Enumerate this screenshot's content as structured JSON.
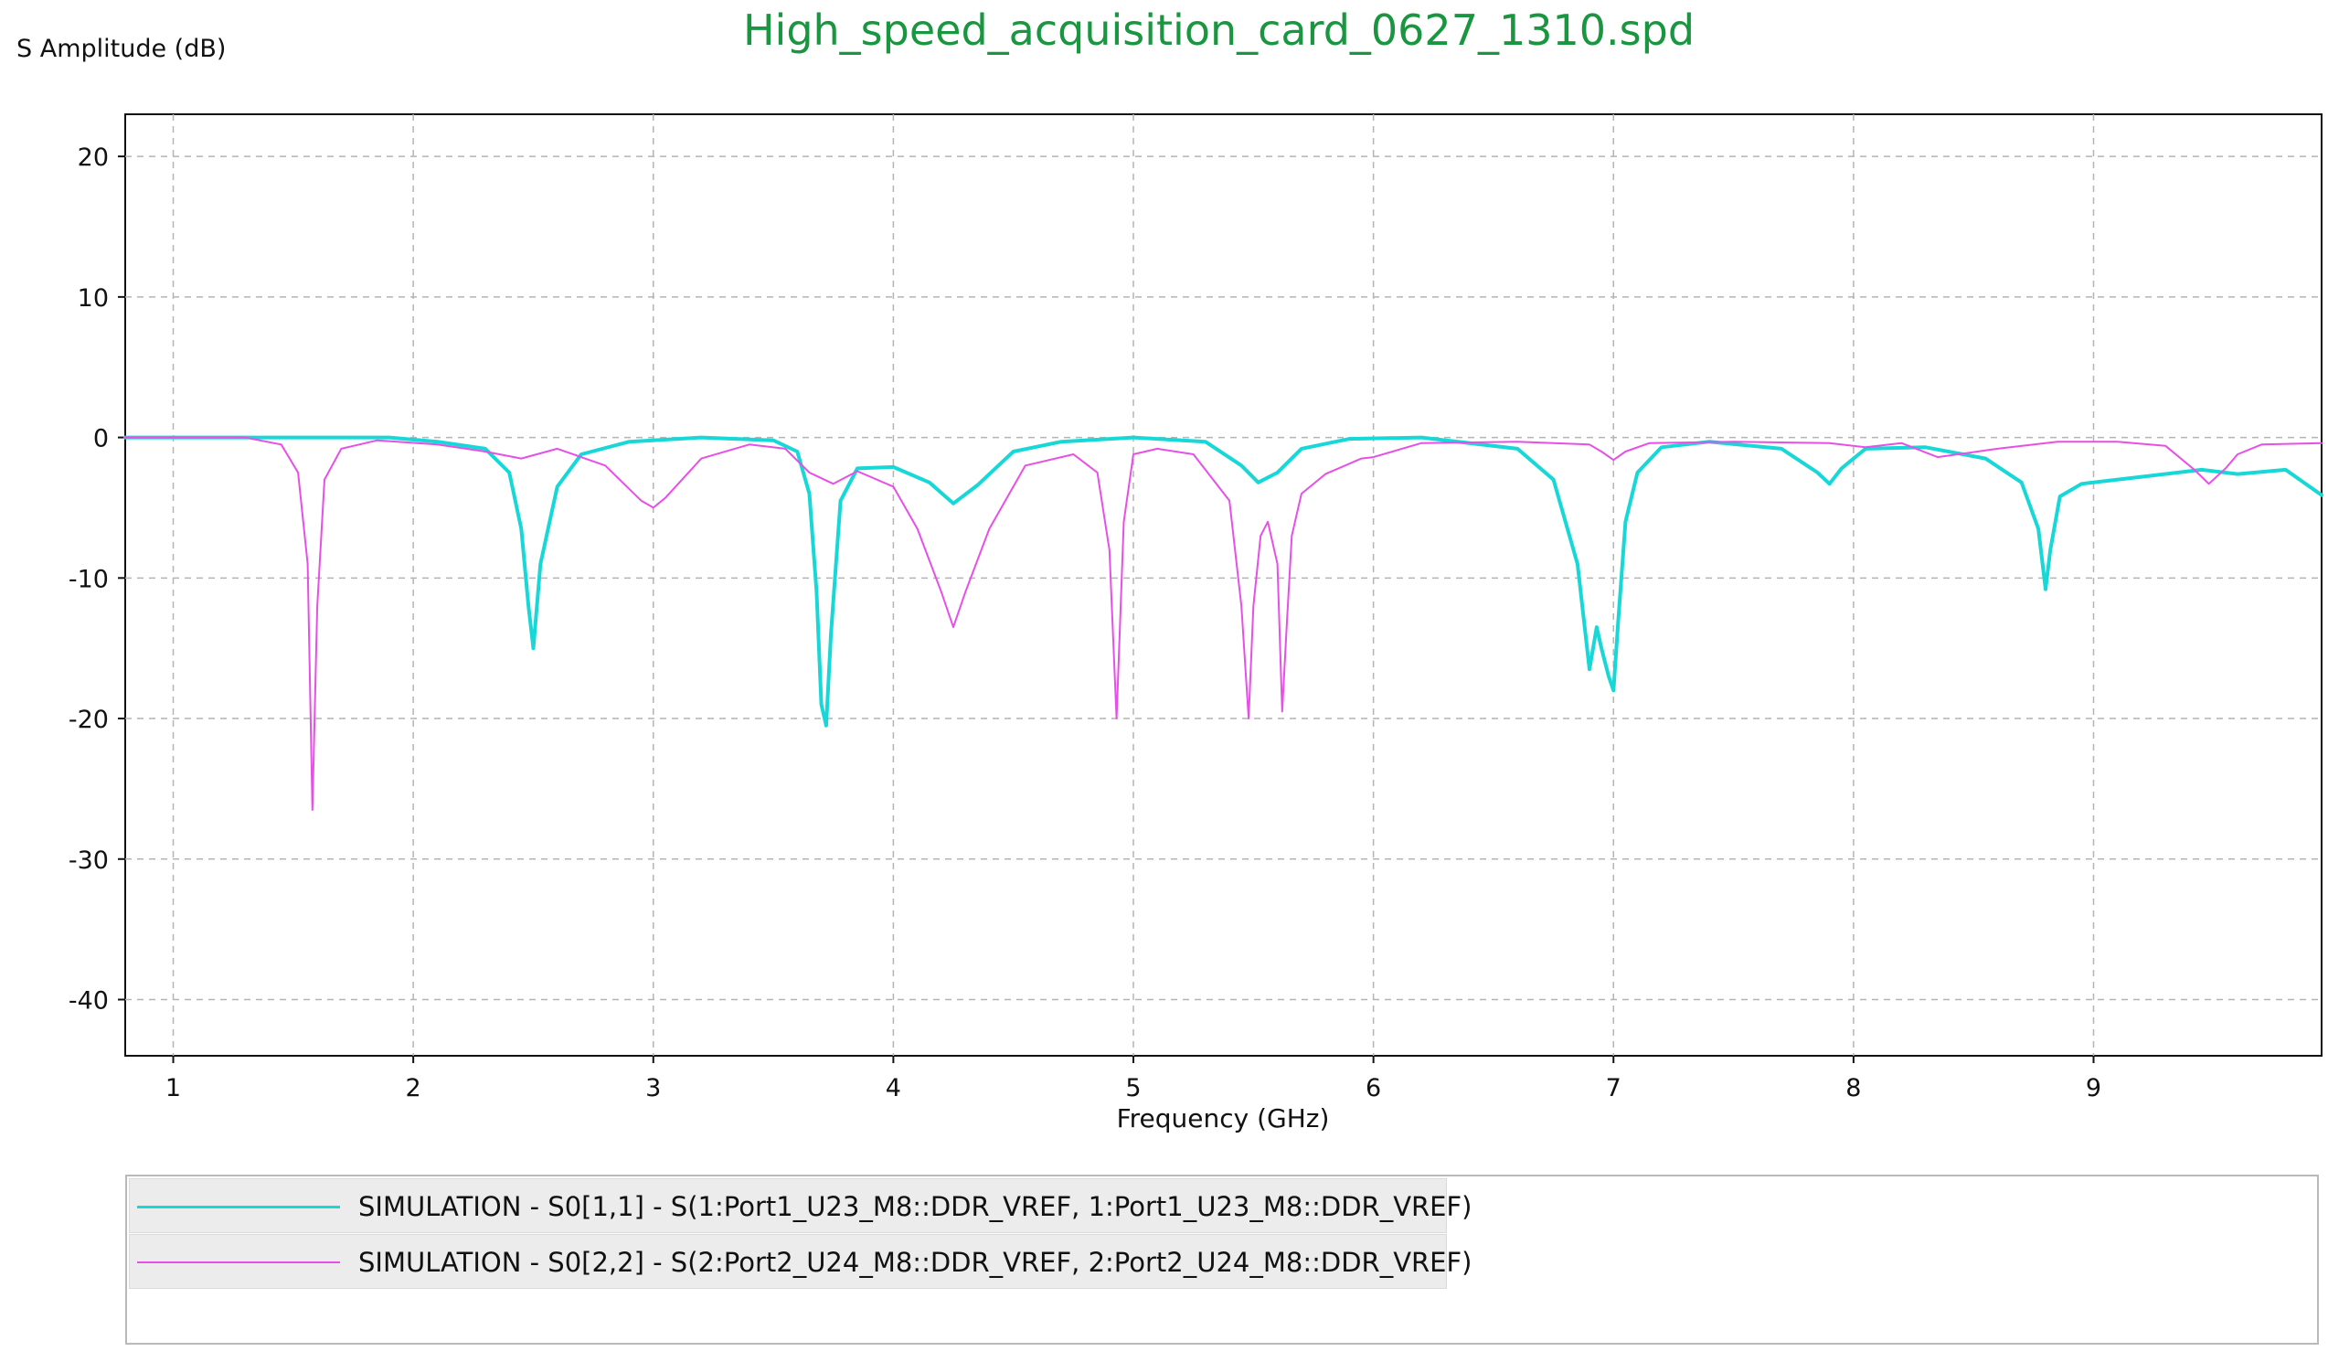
{
  "chart_data": {
    "type": "line",
    "title": "High_speed_acquisition_card_0627_1310.spd",
    "xlabel": "Frequency (GHz)",
    "ylabel": "S Amplitude (dB)",
    "xlim": [
      0.8,
      9.95
    ],
    "ylim": [
      -44,
      23
    ],
    "x_ticks": [
      1,
      2,
      3,
      4,
      5,
      6,
      7,
      8,
      9
    ],
    "y_ticks": [
      20,
      10,
      0,
      -10,
      -20,
      -30,
      -40
    ],
    "grid": true,
    "legend_position": "bottom",
    "series": [
      {
        "name": "SIMULATION - S0[1,1] - S(1:Port1_U23_M8::DDR_VREF, 1:Port1_U23_M8::DDR_VREF)",
        "color": "#17d7d7",
        "line_width": 4,
        "x": [
          0.8,
          1.5,
          1.9,
          2.1,
          2.3,
          2.4,
          2.45,
          2.48,
          2.5,
          2.53,
          2.6,
          2.7,
          2.9,
          3.2,
          3.5,
          3.6,
          3.65,
          3.68,
          3.7,
          3.72,
          3.74,
          3.78,
          3.85,
          4.0,
          4.15,
          4.25,
          4.35,
          4.5,
          4.7,
          5.0,
          5.3,
          5.45,
          5.52,
          5.6,
          5.7,
          5.9,
          6.2,
          6.6,
          6.75,
          6.85,
          6.9,
          6.93,
          6.95,
          6.98,
          7.0,
          7.02,
          7.05,
          7.1,
          7.2,
          7.4,
          7.7,
          7.85,
          7.9,
          7.95,
          8.05,
          8.3,
          8.55,
          8.7,
          8.77,
          8.8,
          8.82,
          8.86,
          8.95,
          9.2,
          9.45,
          9.6,
          9.8,
          9.95
        ],
        "y": [
          0,
          0,
          0,
          -0.3,
          -0.8,
          -2.5,
          -6.5,
          -12,
          -15,
          -9,
          -3.5,
          -1.2,
          -0.3,
          0,
          -0.2,
          -1,
          -4,
          -11,
          -19,
          -20.5,
          -14,
          -4.5,
          -2.2,
          -2.1,
          -3.2,
          -4.7,
          -3.4,
          -1,
          -0.3,
          0,
          -0.3,
          -2,
          -3.2,
          -2.5,
          -0.8,
          -0.1,
          0,
          -0.8,
          -3,
          -9,
          -16.5,
          -13.5,
          -15,
          -17,
          -18,
          -13,
          -6,
          -2.5,
          -0.7,
          -0.3,
          -0.8,
          -2.5,
          -3.3,
          -2.2,
          -0.8,
          -0.7,
          -1.5,
          -3.2,
          -6.5,
          -10.8,
          -8,
          -4.2,
          -3.3,
          -2.8,
          -2.3,
          -2.6,
          -2.3,
          -4.1
        ]
      },
      {
        "name": "SIMULATION - S0[2,2] - S(2:Port2_U24_M8::DDR_VREF, 2:Port2_U24_M8::DDR_VREF)",
        "color": "#e650e6",
        "line_width": 2,
        "x": [
          0.8,
          1.3,
          1.45,
          1.52,
          1.56,
          1.58,
          1.6,
          1.63,
          1.7,
          1.85,
          2.1,
          2.3,
          2.45,
          2.6,
          2.8,
          2.95,
          3.0,
          3.05,
          3.2,
          3.4,
          3.55,
          3.65,
          3.75,
          3.85,
          4.0,
          4.1,
          4.2,
          4.25,
          4.3,
          4.4,
          4.55,
          4.75,
          4.85,
          4.9,
          4.93,
          4.96,
          5.0,
          5.1,
          5.25,
          5.4,
          5.45,
          5.48,
          5.5,
          5.53,
          5.56,
          5.6,
          5.62,
          5.64,
          5.66,
          5.7,
          5.8,
          5.95,
          6.0,
          6.2,
          6.6,
          6.9,
          6.95,
          7.0,
          7.05,
          7.15,
          7.5,
          7.9,
          8.05,
          8.2,
          8.35,
          8.6,
          8.85,
          9.1,
          9.3,
          9.42,
          9.48,
          9.55,
          9.6,
          9.7,
          9.95
        ],
        "y": [
          0,
          0,
          -0.5,
          -2.5,
          -9,
          -26.5,
          -12,
          -3,
          -0.8,
          -0.2,
          -0.5,
          -1,
          -1.5,
          -0.8,
          -2,
          -4.5,
          -5,
          -4.3,
          -1.5,
          -0.5,
          -0.8,
          -2.5,
          -3.3,
          -2.4,
          -3.5,
          -6.5,
          -11,
          -13.5,
          -11,
          -6.5,
          -2,
          -1.2,
          -2.5,
          -8,
          -20,
          -6,
          -1.2,
          -0.8,
          -1.2,
          -4.5,
          -12,
          -20,
          -12,
          -7,
          -6,
          -9,
          -19.5,
          -13,
          -7,
          -4,
          -2.6,
          -1.5,
          -1.4,
          -0.4,
          -0.3,
          -0.5,
          -1,
          -1.6,
          -1,
          -0.4,
          -0.3,
          -0.4,
          -0.7,
          -0.4,
          -1.4,
          -0.8,
          -0.3,
          -0.3,
          -0.6,
          -2.3,
          -3.3,
          -2.2,
          -1.2,
          -0.5,
          -0.4
        ]
      }
    ]
  }
}
